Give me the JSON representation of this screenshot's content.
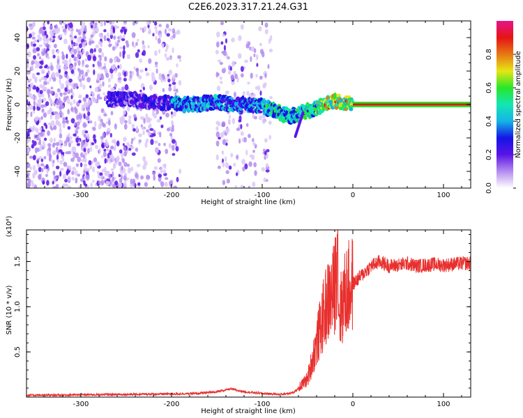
{
  "title": "C2E6.2023.317.21.24.G31",
  "colors": {
    "snr_line": "#e8302e",
    "axis": "#000000",
    "colorbar_stops": [
      "#ffffff",
      "#b48cf0",
      "#5a14e6",
      "#1414e6",
      "#14b4e6",
      "#14e6b4",
      "#28e628",
      "#e6e614",
      "#e67814",
      "#e61414",
      "#e6148c"
    ]
  },
  "chart_data": [
    {
      "type": "heatmap",
      "title": "C2E6.2023.317.21.24.G31",
      "xlabel": "Height of straight line (km)",
      "ylabel": "Frequency (Hz)",
      "xlim": [
        -360,
        130
      ],
      "ylim": [
        -50,
        50
      ],
      "x_ticks": [
        -300,
        -200,
        -100,
        0,
        100
      ],
      "x_tick_labels": [
        "-300",
        "-200",
        "-100",
        "0",
        "100"
      ],
      "y_ticks": [
        -40,
        -20,
        0,
        20,
        40
      ],
      "y_tick_labels": [
        "-40",
        "-20",
        "0",
        "20",
        "40"
      ],
      "colorbar": {
        "label": "Normalized spectral amplitude",
        "range": [
          0.0,
          1.0
        ],
        "ticks": [
          0.0,
          0.2,
          0.4,
          0.6,
          0.8
        ],
        "tick_labels": [
          "0.0",
          "0.2",
          "0.4",
          "0.6",
          "0.8"
        ]
      },
      "ridge": {
        "x": [
          -270,
          -240,
          -210,
          -180,
          -150,
          -120,
          -100,
          -80,
          -70,
          -60,
          -50,
          -40,
          -30,
          -20,
          -10,
          0,
          130
        ],
        "y": [
          3,
          3,
          1,
          0,
          1,
          0,
          -1,
          -5,
          -7,
          -6,
          -4,
          -2,
          1,
          2,
          1,
          0,
          0
        ]
      },
      "scatter_regions": [
        {
          "x": [
            -360,
            -190
          ],
          "y": [
            -50,
            50
          ]
        },
        {
          "x": [
            -150,
            -90
          ],
          "y": [
            -50,
            50
          ]
        }
      ]
    },
    {
      "type": "line",
      "xlabel": "Height of straight line (km)",
      "ylabel": "SNR (10 * v/v)",
      "y_multiplier": "(x10⁴)",
      "xlim": [
        -360,
        130
      ],
      "ylim": [
        0,
        18500
      ],
      "x_ticks": [
        -300,
        -200,
        -100,
        0,
        100
      ],
      "x_tick_labels": [
        "-300",
        "-200",
        "-100",
        "0",
        "100"
      ],
      "y_ticks": [
        5000,
        10000,
        15000
      ],
      "y_tick_labels": [
        "0.5",
        "1.0",
        "1.5"
      ],
      "series": [
        {
          "x": [
            -360,
            -300,
            -250,
            -200,
            -170,
            -150,
            -135,
            -120,
            -100,
            -80,
            -65,
            -50,
            -45,
            -40,
            -35,
            -30,
            -25,
            -20,
            -17,
            -15,
            -10,
            -5,
            0,
            10,
            20,
            30,
            40,
            50,
            60,
            70,
            80,
            90,
            100,
            110,
            120,
            130
          ],
          "y": [
            200,
            250,
            300,
            350,
            400,
            600,
            900,
            600,
            400,
            300,
            500,
            2000,
            4000,
            6000,
            8000,
            10000,
            11000,
            12000,
            17000,
            9000,
            11000,
            12000,
            12500,
            13500,
            14500,
            15000,
            14500,
            14600,
            14800,
            14500,
            14600,
            14700,
            14600,
            14700,
            14800,
            14800
          ]
        }
      ]
    }
  ]
}
